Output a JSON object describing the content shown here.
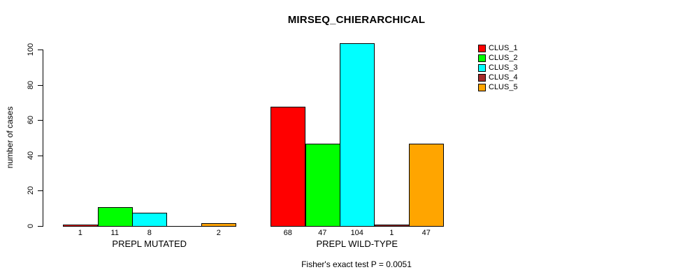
{
  "chart_data": {
    "type": "bar",
    "title": "MIRSEQ_CHIERARCHICAL",
    "xlabel": "",
    "ylabel": "number of cases",
    "ylim": [
      0,
      100
    ],
    "yticks": [
      0,
      20,
      40,
      60,
      80,
      100
    ],
    "grid": false,
    "categories": [
      "PREPL MUTATED",
      "PREPL WILD-TYPE"
    ],
    "series": [
      {
        "name": "CLUS_1",
        "color": "#FF0000",
        "values": [
          1,
          68
        ]
      },
      {
        "name": "CLUS_2",
        "color": "#00FF00",
        "values": [
          11,
          47
        ]
      },
      {
        "name": "CLUS_3",
        "color": "#00FFFF",
        "values": [
          8,
          104
        ]
      },
      {
        "name": "CLUS_4",
        "color": "#A52A2A",
        "values": [
          0,
          1
        ]
      },
      {
        "name": "CLUS_5",
        "color": "#FFA500",
        "values": [
          2,
          47
        ]
      }
    ],
    "bar_value_labels": [
      [
        "1",
        "11",
        "8",
        "",
        "2"
      ],
      [
        "68",
        "47",
        "104",
        "1",
        "47"
      ]
    ],
    "annotation": "Fisher's exact test P = 0.0051",
    "legend": {
      "position": "top-right",
      "entries": [
        "CLUS_1",
        "CLUS_2",
        "CLUS_3",
        "CLUS_4",
        "CLUS_5"
      ]
    },
    "axis_color": "#000000",
    "background": "#FFFFFF"
  }
}
